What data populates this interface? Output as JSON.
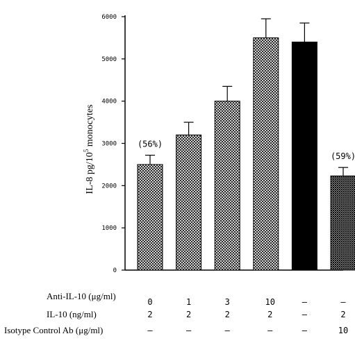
{
  "chart_data": {
    "type": "bar",
    "ylabel": "IL-8 pg/10",
    "ylabel_sup": "5",
    "ylabel_tail": " monocytes",
    "ylim": [
      0,
      6000
    ],
    "yticks": [
      "0",
      "1000",
      "2000",
      "3000",
      "4000",
      "5000",
      "6000"
    ],
    "grid": false,
    "bars": [
      {
        "value": 2500,
        "error": 220,
        "fill": "crosshatch",
        "annotation": "(56%)"
      },
      {
        "value": 3200,
        "error": 300,
        "fill": "crosshatch",
        "annotation": ""
      },
      {
        "value": 4000,
        "error": 350,
        "fill": "crosshatch",
        "annotation": ""
      },
      {
        "value": 5500,
        "error": 450,
        "fill": "crosshatch",
        "annotation": ""
      },
      {
        "value": 5400,
        "error": 450,
        "fill": "solid-black",
        "annotation": ""
      },
      {
        "value": 2230,
        "error": 200,
        "fill": "dense-hatch",
        "annotation": "(59%)"
      }
    ],
    "conditions": [
      {
        "label": "Anti-IL-10 (μg/ml)",
        "values": [
          "0",
          "1",
          "3",
          "10",
          "–",
          "–"
        ]
      },
      {
        "label": "IL-10 (ng/ml)",
        "values": [
          "2",
          "2",
          "2",
          "2",
          "–",
          "2"
        ]
      },
      {
        "label": "Isotype Control Ab (μg/ml)",
        "values": [
          "–",
          "–",
          "–",
          "–",
          "–",
          "10"
        ]
      }
    ]
  }
}
